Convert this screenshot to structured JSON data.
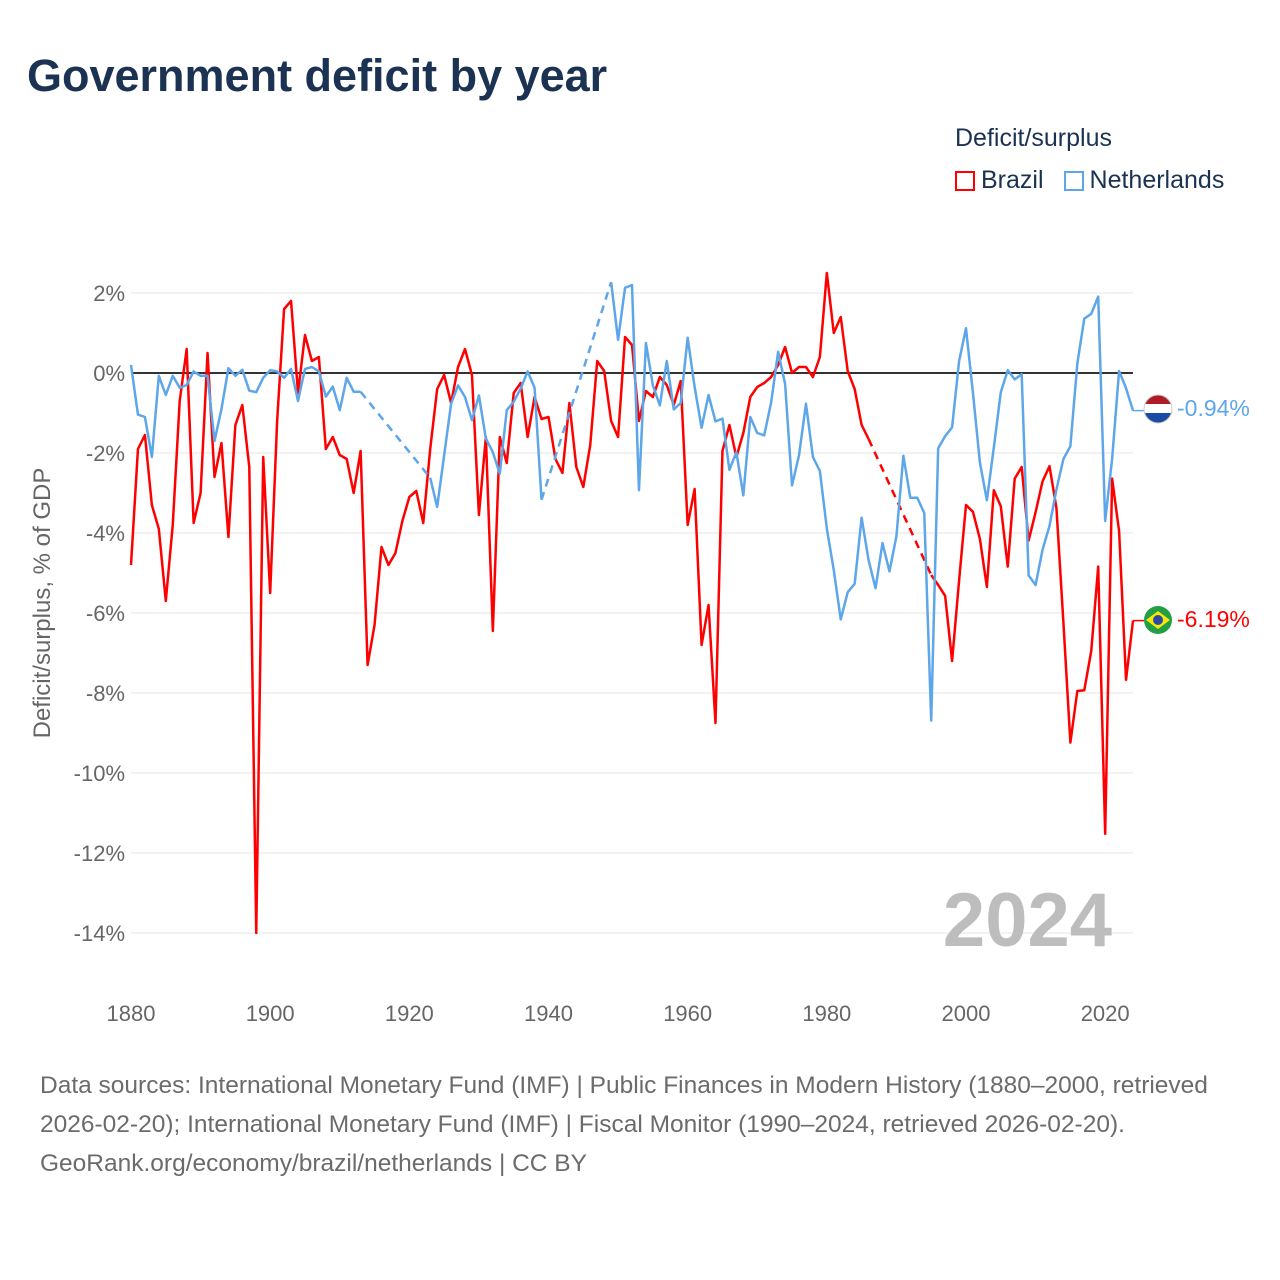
{
  "title": "Government deficit by year",
  "legend": {
    "title": "Deficit/surplus",
    "items": [
      {
        "name": "Brazil",
        "color": "#ff0000"
      },
      {
        "name": "Netherlands",
        "color": "#5ea6ea"
      }
    ]
  },
  "year_watermark": "2024",
  "end_labels": {
    "netherlands": "-0.94%",
    "brazil": "-6.19%"
  },
  "footer": {
    "sources": "Data sources: International Monetary Fund (IMF) | Public Finances in Modern History (1880–2000, retrieved 2026-02-20); International Monetary Fund (IMF) | Fiscal Monitor (1990–2024, retrieved 2026-02-20).",
    "credit": "GeoRank.org/economy/brazil/netherlands | CC BY"
  },
  "chart_data": {
    "type": "line",
    "title": "Government deficit by year",
    "xlabel": "",
    "ylabel": "Deficit/surplus, % of GDP",
    "xlim": [
      1880,
      2024
    ],
    "ylim": [
      -14,
      2
    ],
    "xticks": [
      1880,
      1900,
      1920,
      1940,
      1960,
      1980,
      2000,
      2020
    ],
    "xtick_labels": [
      "1880",
      "1900",
      "1920",
      "1940",
      "1960",
      "1980",
      "2000",
      "2020"
    ],
    "yticks": [
      2,
      0,
      -2,
      -4,
      -6,
      -8,
      -10,
      -12,
      -14
    ],
    "ytick_labels": [
      "2%",
      "0%",
      "-2%",
      "-4%",
      "-6%",
      "-8%",
      "-10%",
      "-12%",
      "-14%"
    ],
    "grid": true,
    "legend_position": "top-right",
    "note": "dashed lines bridge missing years",
    "series": [
      {
        "name": "Brazil",
        "color": "#ff0000",
        "segments": [
          {
            "start": 1880,
            "values": [
              -4.8,
              -1.9,
              -1.55,
              -3.3,
              -3.9,
              -5.7,
              -3.8,
              -0.7,
              0.6,
              -3.75,
              -3.0,
              0.5,
              -2.6,
              -1.75,
              -4.1,
              -1.3,
              -0.8,
              -2.35,
              -14,
              -2.1,
              -5.5,
              -1.2,
              1.6,
              1.8,
              -0.5,
              0.95,
              0.3,
              0.4,
              -1.9,
              -1.6,
              -2.05,
              -2.15,
              -3.0,
              -1.95,
              -7.3,
              -6.3,
              -4.35,
              -4.8,
              -4.5,
              -3.7,
              -3.1,
              -2.95,
              -3.75,
              -1.9,
              -0.4,
              -0.05,
              -0.75,
              0.15,
              0.6,
              -0.05,
              -3.55,
              -1.6,
              -6.45,
              -1.6,
              -2.25,
              -0.5,
              -0.25,
              -1.6,
              -0.6,
              -1.15,
              -1.1,
              -2.15,
              -2.5,
              -0.75,
              -2.35,
              -2.85,
              -1.8,
              0.3,
              0.05,
              -1.2,
              -1.6,
              0.9,
              0.7,
              -1.2,
              -0.45,
              -0.6,
              -0.1,
              -0.3,
              -0.8,
              -0.2,
              -3.8,
              -2.9,
              -6.8,
              -5.8,
              -8.75,
              -1.95,
              -1.3,
              -2.1,
              -1.5,
              -0.6,
              -0.35,
              -0.25,
              -0.1,
              0.2,
              0.65,
              0.0,
              0.15,
              0.15,
              -0.1,
              0.4,
              2.5,
              1.0,
              1.4,
              0.05,
              -0.4,
              -1.3,
              -1.65
            ]
          },
          {
            "start": 1995,
            "values": [
              -5.05,
              -5.3,
              -5.57,
              -7.2,
              -5.2,
              -3.3,
              -3.47,
              -4.15,
              -5.35,
              -2.93,
              -3.33,
              -4.84,
              -2.64,
              -2.35,
              -4.19,
              -3.48,
              -2.71,
              -2.33,
              -3.38,
              -6.24,
              -9.24,
              -7.95,
              -7.93,
              -6.95,
              -4.84,
              -11.52,
              -2.64,
              -3.95,
              -7.67,
              -6.19
            ]
          }
        ]
      },
      {
        "name": "Netherlands",
        "color": "#5ea6ea",
        "segments": [
          {
            "start": 1880,
            "values": [
              0.2,
              -1.04,
              -1.1,
              -2.1,
              -0.07,
              -0.55,
              -0.07,
              -0.37,
              -0.3,
              0.04,
              -0.07,
              -0.07,
              -1.7,
              -0.9,
              0.12,
              -0.07,
              0.08,
              -0.44,
              -0.48,
              -0.12,
              0.07,
              0.04,
              -0.12,
              0.1,
              -0.7,
              0.1,
              0.15,
              0.04,
              -0.59,
              -0.34,
              -0.93,
              -0.12,
              -0.47,
              -0.47
            ]
          },
          {
            "start": 1923,
            "values": [
              -2.62,
              -3.35,
              -2.06,
              -0.77,
              -0.31,
              -0.6,
              -1.18,
              -0.56,
              -1.64,
              -1.98,
              -2.52,
              -0.93,
              -0.72,
              -0.39,
              0.04,
              -0.37,
              -3.17
            ]
          },
          {
            "start": 1949,
            "values": [
              2.27,
              0.83,
              2.13,
              2.2,
              -2.93,
              0.75,
              -0.31,
              -0.81,
              0.3,
              -0.91,
              -0.75,
              0.88,
              -0.35,
              -1.37,
              -0.55,
              -1.21,
              -1.14,
              -2.42,
              -1.98,
              -3.06,
              -1.1,
              -1.5,
              -1.56,
              -0.73,
              0.53,
              -0.27,
              -2.81,
              -2.06,
              -0.77,
              -2.1,
              -2.45,
              -3.89,
              -4.93,
              -6.16,
              -5.48,
              -5.27,
              -3.62,
              -4.68,
              -5.38,
              -4.25,
              -4.96,
              -4.08,
              -2.07,
              -3.12,
              -3.12,
              -3.5,
              -8.69,
              -1.88,
              -1.58,
              -1.36,
              0.29,
              1.12,
              -0.5,
              -2.24,
              -3.18,
              -1.86,
              -0.48,
              0.07,
              -0.16,
              -0.03,
              -5.06,
              -5.3,
              -4.42,
              -3.82,
              -2.91,
              -2.15,
              -1.83,
              0.24,
              1.36,
              1.48,
              1.91,
              -3.7,
              -2.15,
              0.05,
              -0.38,
              -0.94
            ]
          }
        ]
      }
    ]
  }
}
